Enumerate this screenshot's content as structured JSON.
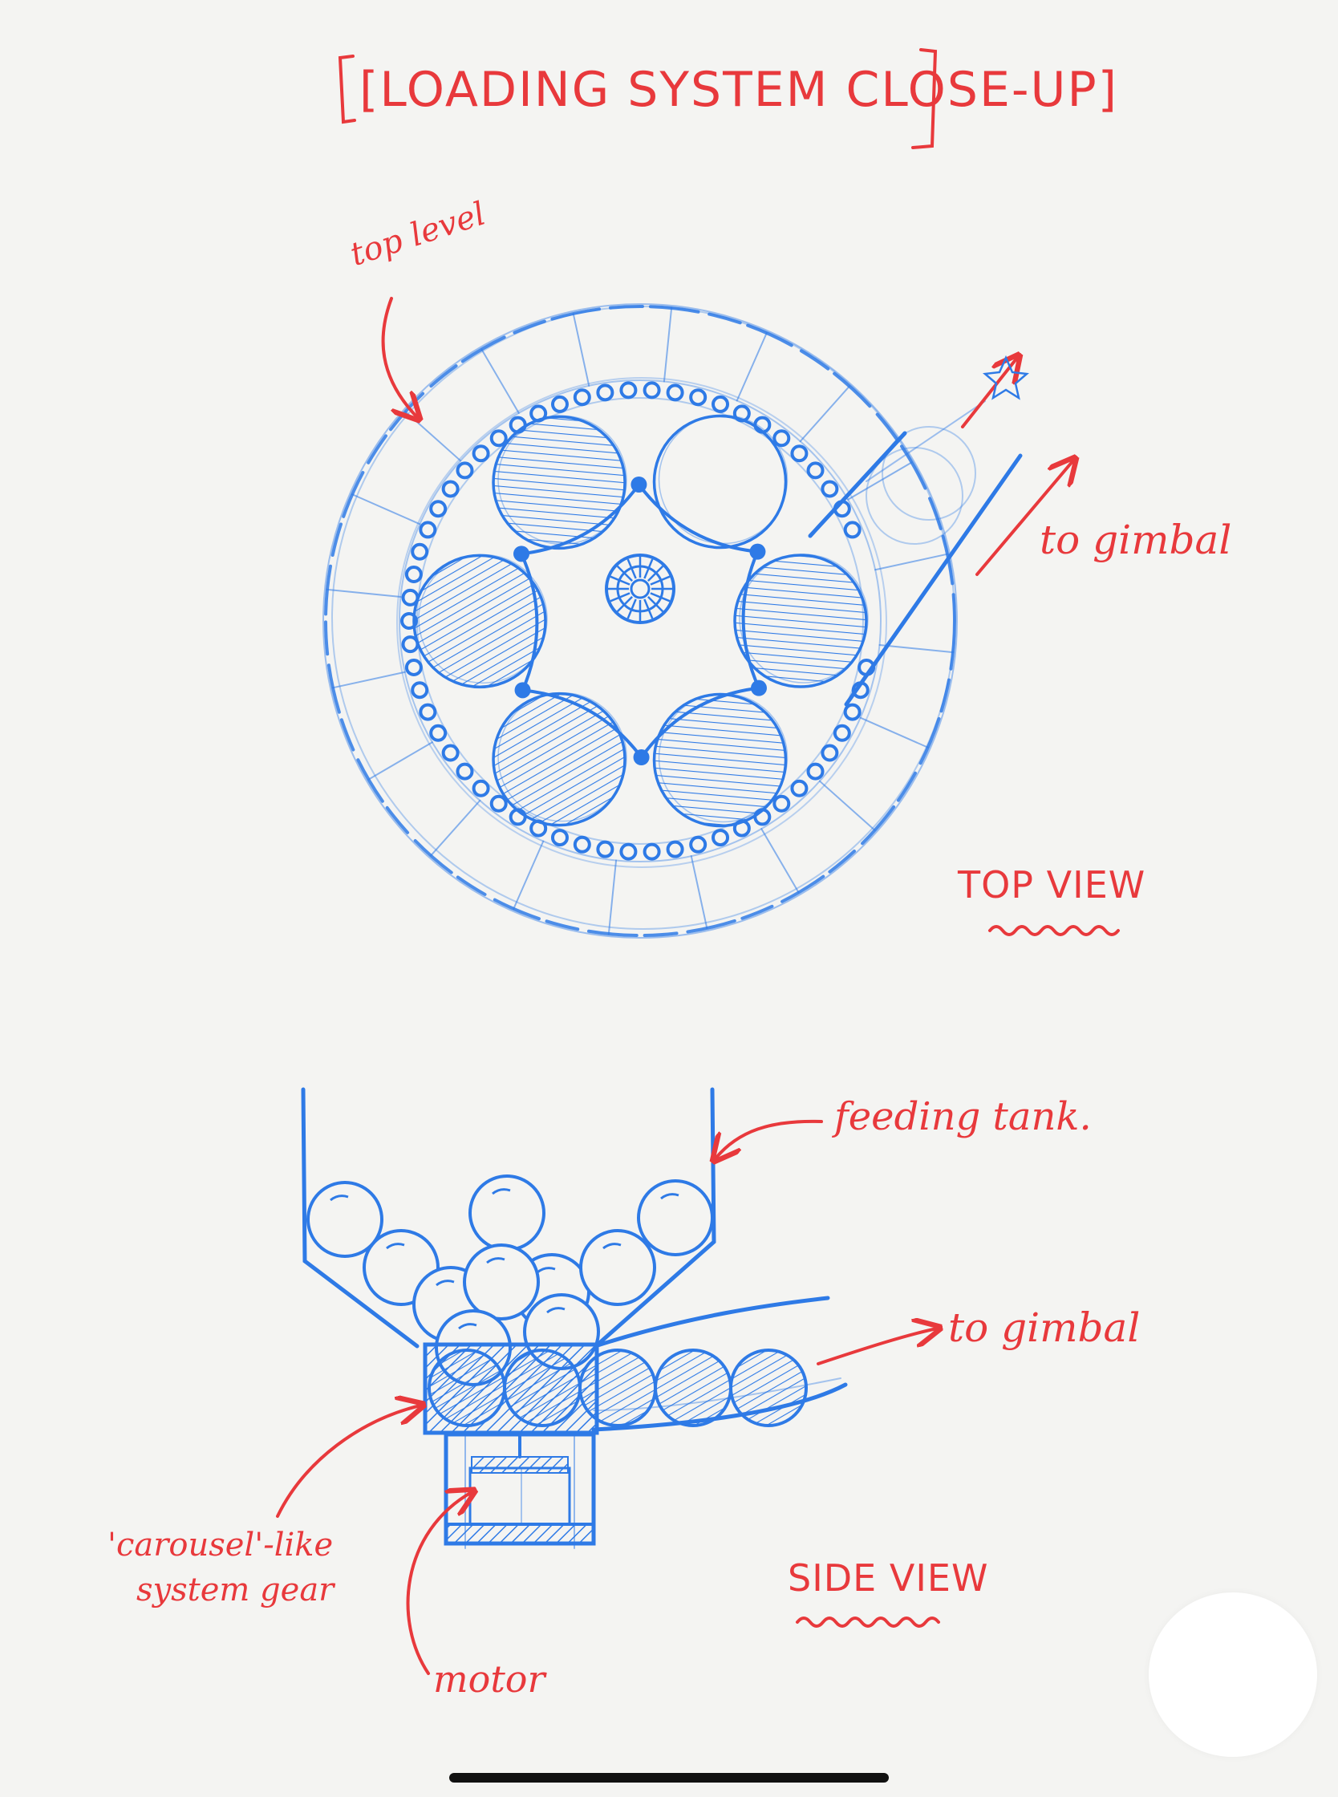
{
  "title": "[LOADING SYSTEM CLOSE-UP]",
  "top_view": {
    "view_label": "TOP VIEW",
    "labels": {
      "top_level": "top level",
      "to_gimbal": "to gimbal"
    },
    "carousel_slots": 6,
    "pins": 6
  },
  "side_view": {
    "view_label": "SIDE VIEW",
    "labels": {
      "feeding_tank": "feeding tank.",
      "to_gimbal": "to gimbal",
      "carousel_line1": "'carousel'-like",
      "carousel_line2": "system gear",
      "motor": "motor"
    },
    "tank_balls": 10,
    "track_balls": 5
  },
  "colors": {
    "ink_blue": "#2e7ae6",
    "ink_red": "#e8393c",
    "paper": "#f4f4f2"
  },
  "icons": {
    "home_indicator": "home-indicator-bar",
    "assistive_touch": "assistive-touch-icon"
  }
}
